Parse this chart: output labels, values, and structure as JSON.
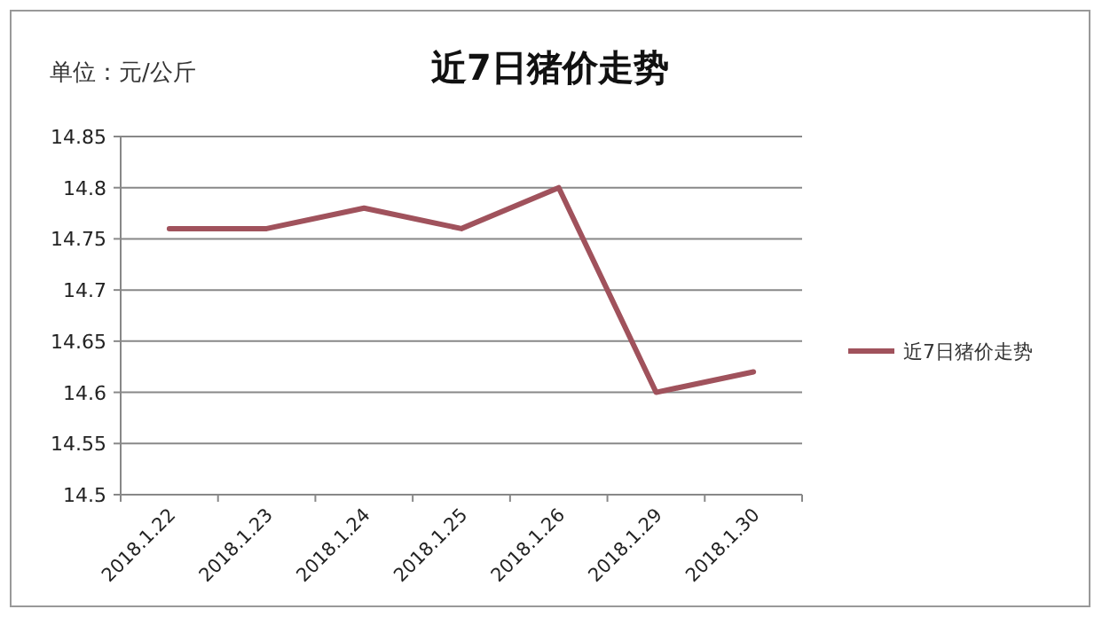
{
  "chart_data": {
    "type": "line",
    "title": "近7日猪价走势",
    "annotations": [
      "单位：元/公斤"
    ],
    "categories": [
      "2018.1.22",
      "2018.1.23",
      "2018.1.24",
      "2018.1.25",
      "2018.1.26",
      "2018.1.29",
      "2018.1.30"
    ],
    "series": [
      {
        "name": "近7日猪价走势",
        "color": "#a0525c",
        "values": [
          14.76,
          14.76,
          14.78,
          14.76,
          14.8,
          14.6,
          14.62
        ]
      }
    ],
    "ylim": [
      14.5,
      14.85
    ],
    "yticks": [
      14.5,
      14.55,
      14.6,
      14.65,
      14.7,
      14.75,
      14.8,
      14.85
    ],
    "grid": "y",
    "legend": "right",
    "marker": "none",
    "line_style": "solid"
  }
}
